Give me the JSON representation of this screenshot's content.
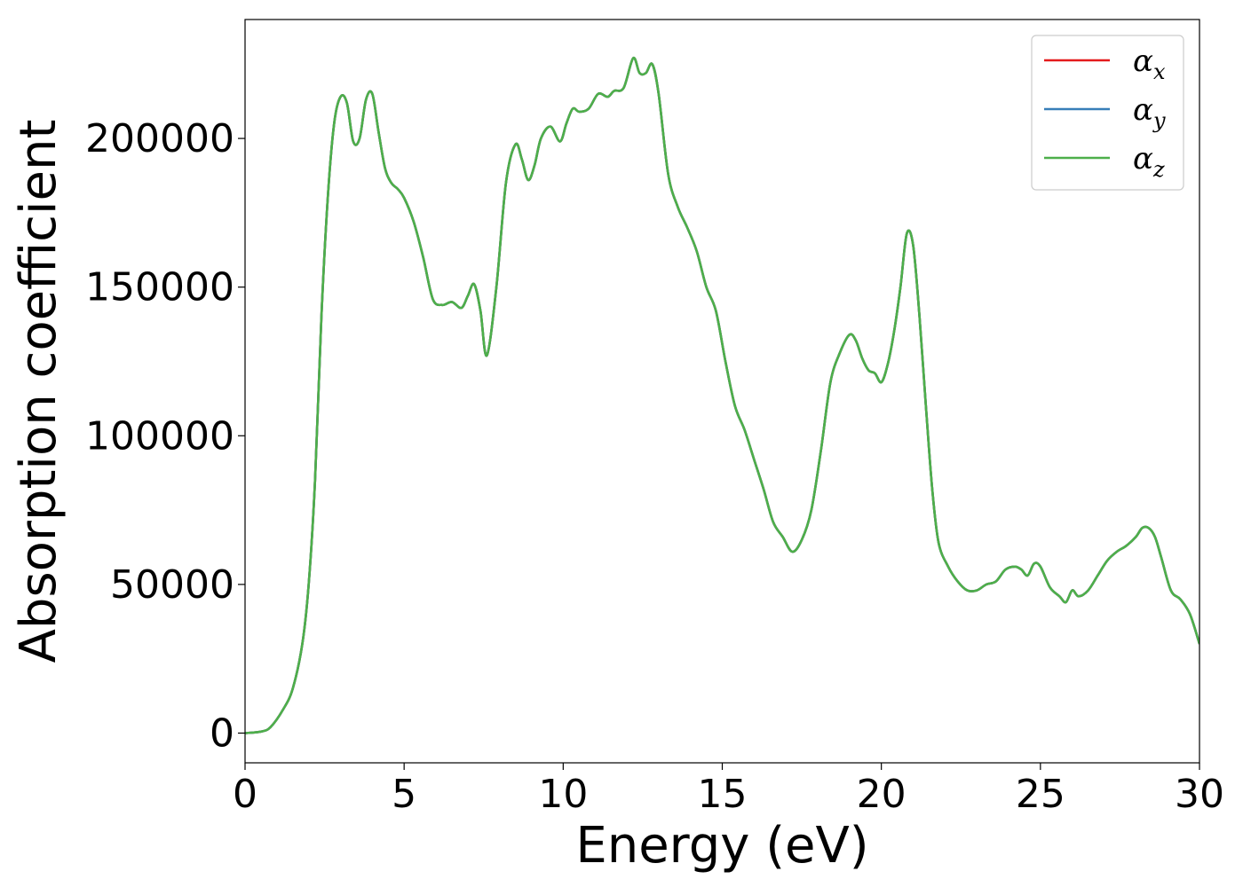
{
  "chart_data": {
    "type": "line",
    "xlabel": "Energy (eV)",
    "ylabel": "Absorption coefficient",
    "xlim": [
      0,
      30
    ],
    "ylim": [
      -10000,
      240000
    ],
    "xticks": [
      0,
      5,
      10,
      15,
      20,
      25,
      30
    ],
    "yticks": [
      0,
      50000,
      100000,
      150000,
      200000
    ],
    "grid": false,
    "legend_position": "top-right",
    "x": [
      0,
      0.5,
      0.8,
      1.2,
      1.5,
      1.8,
      2.0,
      2.2,
      2.4,
      2.6,
      2.8,
      3.0,
      3.2,
      3.4,
      3.6,
      3.8,
      4.0,
      4.2,
      4.4,
      4.6,
      4.8,
      5.0,
      5.3,
      5.6,
      5.9,
      6.2,
      6.5,
      6.8,
      7.0,
      7.2,
      7.4,
      7.6,
      7.9,
      8.2,
      8.5,
      8.7,
      8.9,
      9.1,
      9.3,
      9.6,
      9.9,
      10.1,
      10.3,
      10.5,
      10.8,
      11.1,
      11.4,
      11.6,
      11.9,
      12.2,
      12.4,
      12.6,
      12.8,
      13.0,
      13.3,
      13.6,
      13.9,
      14.2,
      14.5,
      14.8,
      15.1,
      15.4,
      15.7,
      16.0,
      16.3,
      16.6,
      16.9,
      17.2,
      17.5,
      17.8,
      18.1,
      18.4,
      18.7,
      19.0,
      19.2,
      19.4,
      19.6,
      19.8,
      20.0,
      20.2,
      20.4,
      20.6,
      20.8,
      21.0,
      21.2,
      21.4,
      21.6,
      21.8,
      22.1,
      22.4,
      22.7,
      23.0,
      23.3,
      23.6,
      23.9,
      24.2,
      24.4,
      24.6,
      24.8,
      25.0,
      25.3,
      25.6,
      25.8,
      26.0,
      26.2,
      26.5,
      26.8,
      27.1,
      27.4,
      27.7,
      28.0,
      28.2,
      28.4,
      28.6,
      28.8,
      29.1,
      29.4,
      29.7,
      30.0
    ],
    "series": [
      {
        "name": "α_x",
        "color": "#e41a1c",
        "values": [
          0,
          500,
          2000,
          8000,
          15000,
          30000,
          50000,
          85000,
          140000,
          180000,
          205000,
          214000,
          212000,
          199000,
          200000,
          213000,
          215000,
          202000,
          190000,
          185000,
          183000,
          180000,
          172000,
          160000,
          146000,
          144000,
          145000,
          143000,
          147000,
          151000,
          142000,
          127000,
          150000,
          185000,
          198000,
          193000,
          186000,
          191000,
          200000,
          204000,
          199000,
          205000,
          210000,
          209000,
          210000,
          215000,
          214000,
          216000,
          217000,
          227000,
          222000,
          222000,
          225000,
          215000,
          188000,
          177000,
          170000,
          162000,
          150000,
          142000,
          125000,
          110000,
          102000,
          92000,
          82000,
          71000,
          66000,
          61000,
          65000,
          75000,
          95000,
          118000,
          128000,
          134000,
          132000,
          126000,
          122000,
          121000,
          118000,
          124000,
          135000,
          150000,
          168000,
          164000,
          140000,
          110000,
          82000,
          64000,
          56000,
          51000,
          48000,
          48000,
          50000,
          51000,
          55000,
          56000,
          55000,
          53000,
          57000,
          56000,
          49000,
          46000,
          44000,
          48000,
          46000,
          48000,
          53000,
          58000,
          61000,
          63000,
          66000,
          69000,
          69000,
          66000,
          59000,
          48000,
          45000,
          40000,
          30000
        ]
      },
      {
        "name": "α_y",
        "color": "#377eb8",
        "values": [
          0,
          500,
          2000,
          8000,
          15000,
          30000,
          50000,
          85000,
          140000,
          180000,
          205000,
          214000,
          212000,
          199000,
          200000,
          213000,
          215000,
          202000,
          190000,
          185000,
          183000,
          180000,
          172000,
          160000,
          146000,
          144000,
          145000,
          143000,
          147000,
          151000,
          142000,
          127000,
          150000,
          185000,
          198000,
          193000,
          186000,
          191000,
          200000,
          204000,
          199000,
          205000,
          210000,
          209000,
          210000,
          215000,
          214000,
          216000,
          217000,
          227000,
          222000,
          222000,
          225000,
          215000,
          188000,
          177000,
          170000,
          162000,
          150000,
          142000,
          125000,
          110000,
          102000,
          92000,
          82000,
          71000,
          66000,
          61000,
          65000,
          75000,
          95000,
          118000,
          128000,
          134000,
          132000,
          126000,
          122000,
          121000,
          118000,
          124000,
          135000,
          150000,
          168000,
          164000,
          140000,
          110000,
          82000,
          64000,
          56000,
          51000,
          48000,
          48000,
          50000,
          51000,
          55000,
          56000,
          55000,
          53000,
          57000,
          56000,
          49000,
          46000,
          44000,
          48000,
          46000,
          48000,
          53000,
          58000,
          61000,
          63000,
          66000,
          69000,
          69000,
          66000,
          59000,
          48000,
          45000,
          40000,
          30000
        ]
      },
      {
        "name": "α_z",
        "color": "#4daf4a",
        "values": [
          0,
          500,
          2000,
          8000,
          15000,
          30000,
          50000,
          85000,
          140000,
          180000,
          205000,
          214000,
          212000,
          199000,
          200000,
          213000,
          215000,
          202000,
          190000,
          185000,
          183000,
          180000,
          172000,
          160000,
          146000,
          144000,
          145000,
          143000,
          147000,
          151000,
          142000,
          127000,
          150000,
          185000,
          198000,
          193000,
          186000,
          191000,
          200000,
          204000,
          199000,
          205000,
          210000,
          209000,
          210000,
          215000,
          214000,
          216000,
          217000,
          227000,
          222000,
          222000,
          225000,
          215000,
          188000,
          177000,
          170000,
          162000,
          150000,
          142000,
          125000,
          110000,
          102000,
          92000,
          82000,
          71000,
          66000,
          61000,
          65000,
          75000,
          95000,
          118000,
          128000,
          134000,
          132000,
          126000,
          122000,
          121000,
          118000,
          124000,
          135000,
          150000,
          168000,
          164000,
          140000,
          110000,
          82000,
          64000,
          56000,
          51000,
          48000,
          48000,
          50000,
          51000,
          55000,
          56000,
          55000,
          53000,
          57000,
          56000,
          49000,
          46000,
          44000,
          48000,
          46000,
          48000,
          53000,
          58000,
          61000,
          63000,
          66000,
          69000,
          69000,
          66000,
          59000,
          48000,
          45000,
          40000,
          30000
        ]
      }
    ],
    "legend": [
      {
        "symbol": "α",
        "subscript": "x"
      },
      {
        "symbol": "α",
        "subscript": "y"
      },
      {
        "symbol": "α",
        "subscript": "z"
      }
    ]
  }
}
